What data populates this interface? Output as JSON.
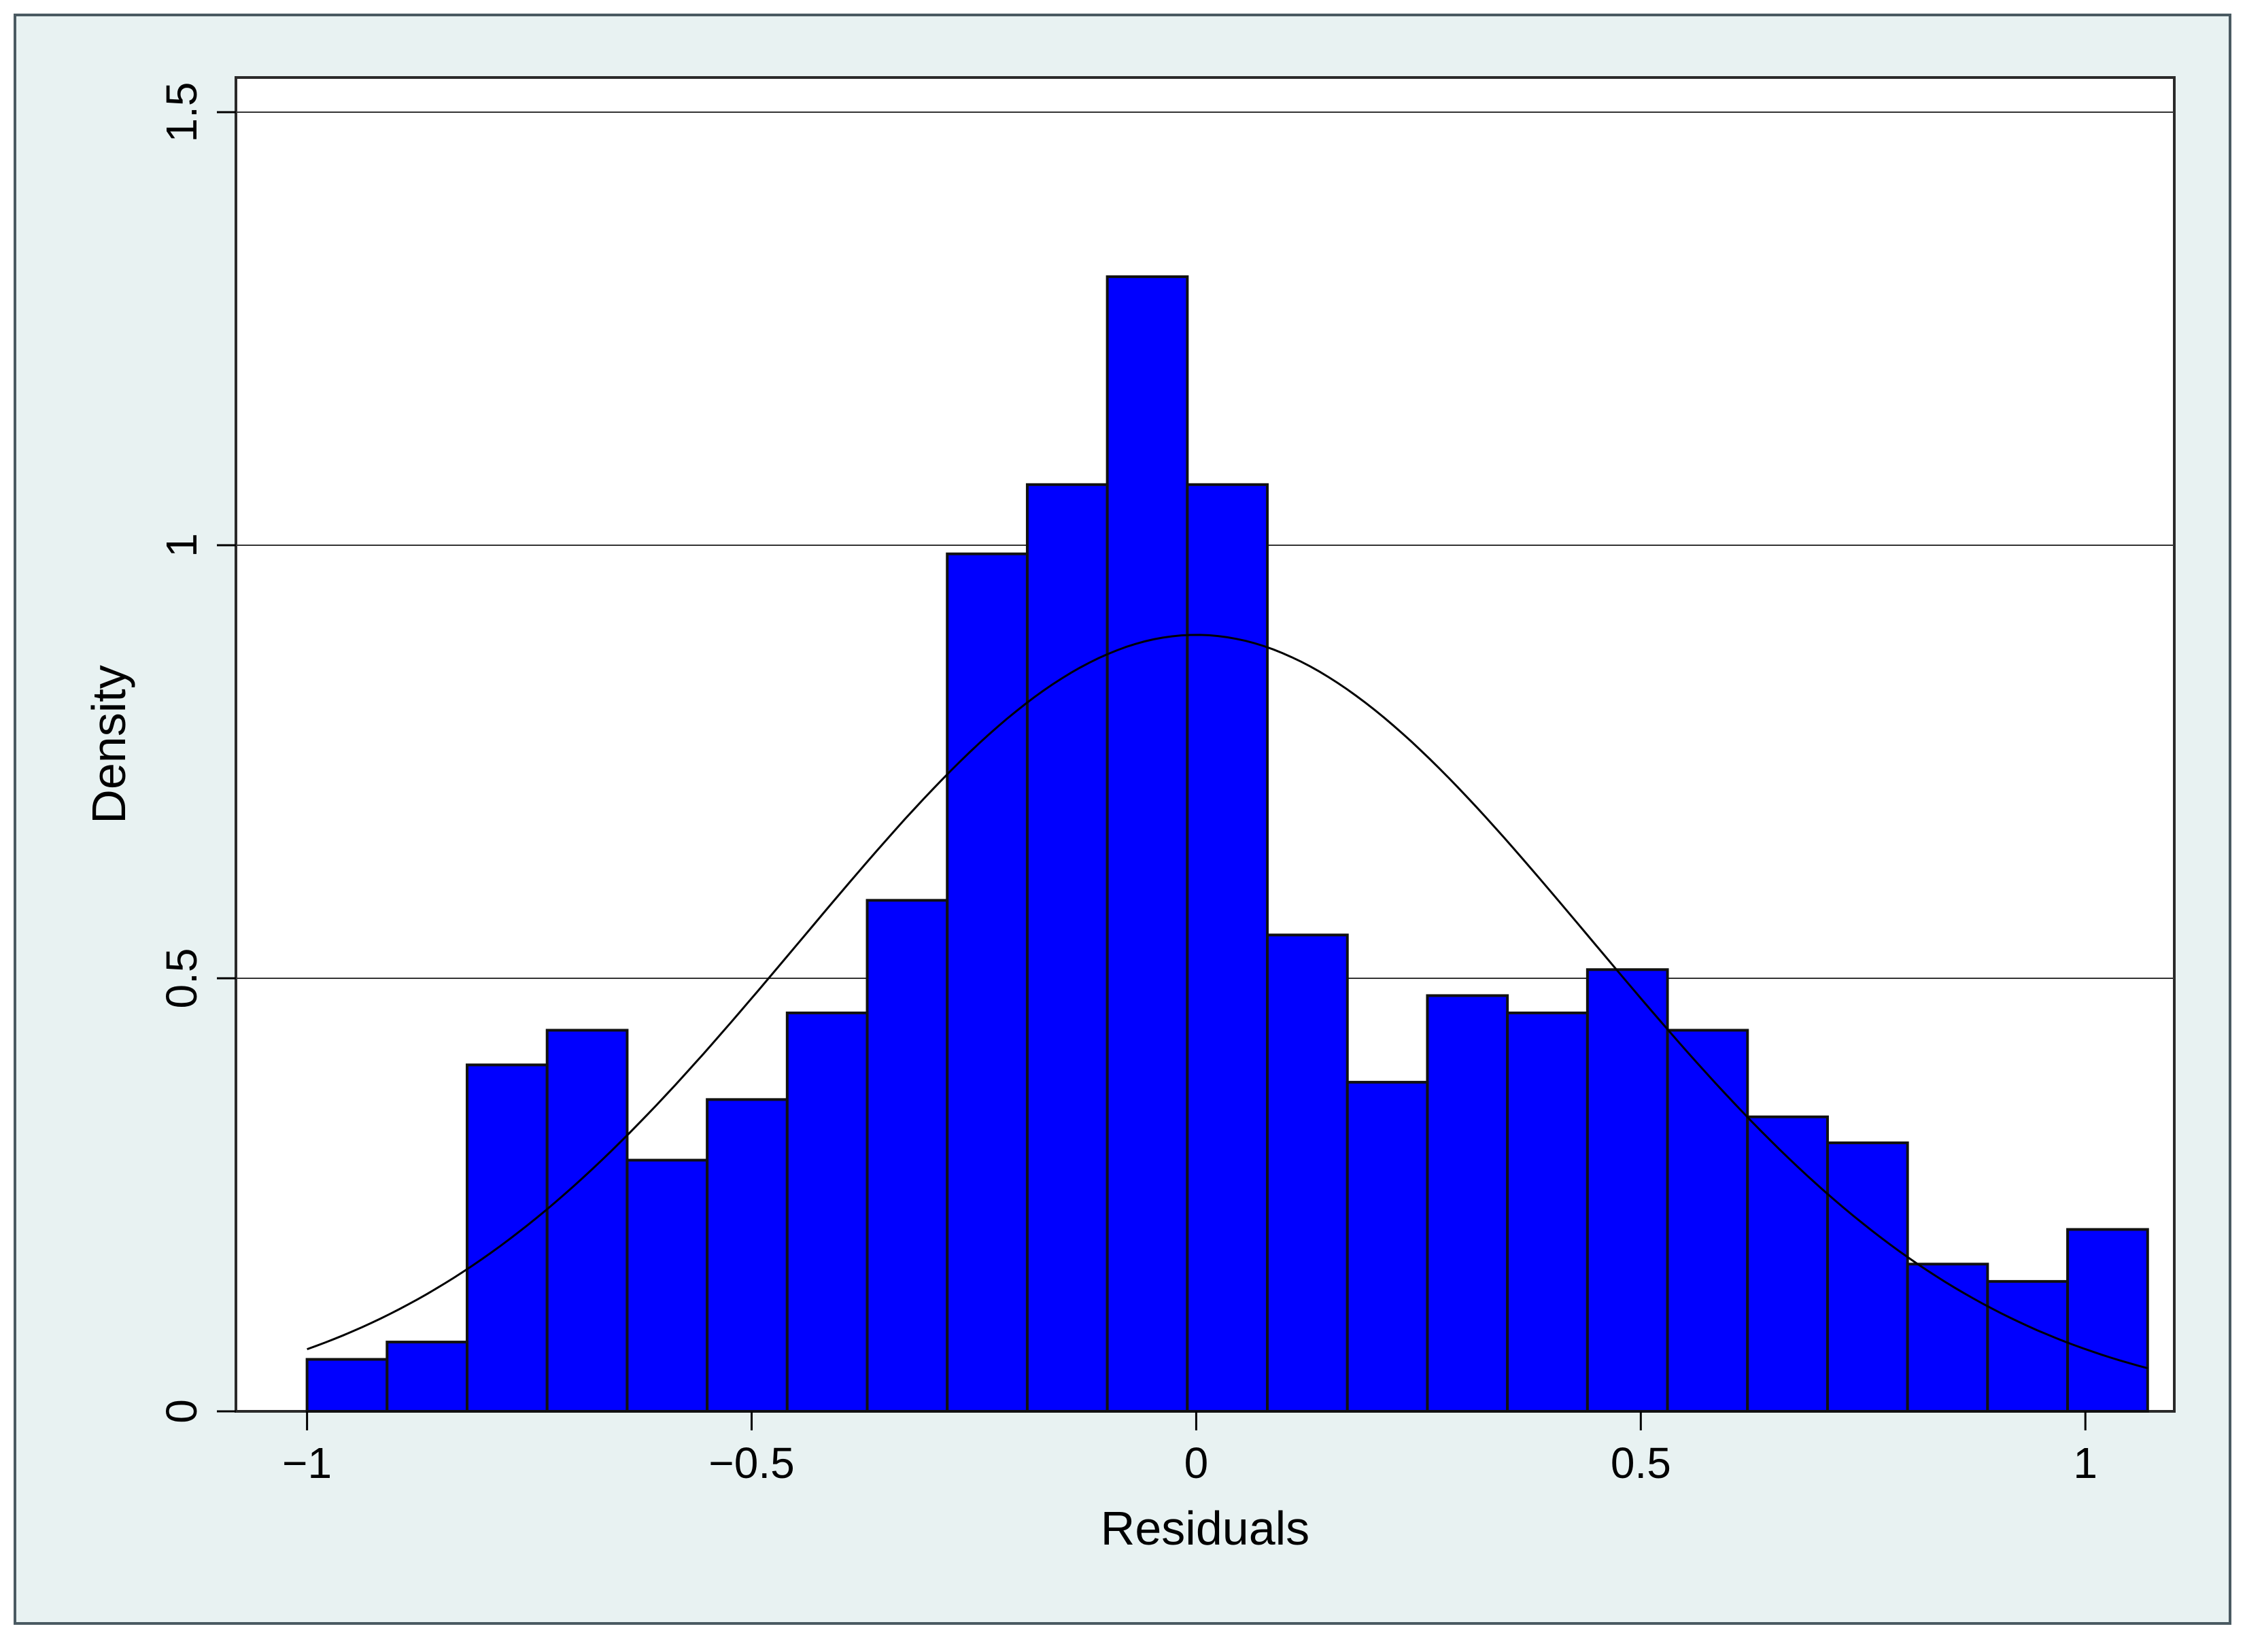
{
  "chart_data": {
    "type": "bar",
    "subtype": "histogram-with-normal-curve",
    "title": "",
    "xlabel": "Residuals",
    "ylabel": "Density",
    "xlim": [
      -1.08,
      1.1
    ],
    "ylim": [
      0,
      1.54
    ],
    "xticks": [
      -1,
      -0.5,
      0,
      0.5,
      1
    ],
    "xtick_labels": [
      "−1",
      "−0.5",
      "0",
      "0.5",
      "1"
    ],
    "yticks": [
      0,
      0.5,
      1,
      1.5
    ],
    "ytick_labels": [
      "0",
      "0.5",
      "1",
      "1.5"
    ],
    "grid": "horizontal",
    "bar_color": "#0000ff",
    "curve_color": "#000000",
    "bins": [
      {
        "x0": -1.0,
        "x1": -0.91,
        "density": 0.06
      },
      {
        "x0": -0.91,
        "x1": -0.82,
        "density": 0.08
      },
      {
        "x0": -0.82,
        "x1": -0.73,
        "density": 0.4
      },
      {
        "x0": -0.73,
        "x1": -0.64,
        "density": 0.44
      },
      {
        "x0": -0.64,
        "x1": -0.55,
        "density": 0.29
      },
      {
        "x0": -0.55,
        "x1": -0.46,
        "density": 0.36
      },
      {
        "x0": -0.46,
        "x1": -0.37,
        "density": 0.46
      },
      {
        "x0": -0.37,
        "x1": -0.28,
        "density": 0.59
      },
      {
        "x0": -0.28,
        "x1": -0.19,
        "density": 0.99
      },
      {
        "x0": -0.19,
        "x1": -0.1,
        "density": 1.07
      },
      {
        "x0": -0.1,
        "x1": -0.01,
        "density": 1.31
      },
      {
        "x0": -0.01,
        "x1": 0.08,
        "density": 1.07
      },
      {
        "x0": 0.08,
        "x1": 0.17,
        "density": 0.55
      },
      {
        "x0": 0.17,
        "x1": 0.26,
        "density": 0.38
      },
      {
        "x0": 0.26,
        "x1": 0.35,
        "density": 0.48
      },
      {
        "x0": 0.35,
        "x1": 0.44,
        "density": 0.46
      },
      {
        "x0": 0.44,
        "x1": 0.53,
        "density": 0.51
      },
      {
        "x0": 0.53,
        "x1": 0.62,
        "density": 0.44
      },
      {
        "x0": 0.62,
        "x1": 0.71,
        "density": 0.34
      },
      {
        "x0": 0.71,
        "x1": 0.8,
        "density": 0.31
      },
      {
        "x0": 0.8,
        "x1": 0.89,
        "density": 0.17
      },
      {
        "x0": 0.89,
        "x1": 0.98,
        "density": 0.15
      },
      {
        "x0": 0.98,
        "x1": 1.07,
        "density": 0.21
      }
    ],
    "normal_curve": {
      "mean": 0.0,
      "sd": 0.445,
      "x_range": [
        -1.0,
        1.07
      ]
    }
  }
}
